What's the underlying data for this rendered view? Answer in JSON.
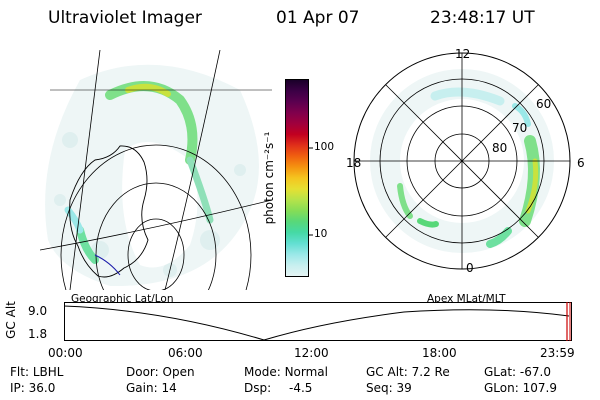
{
  "header": {
    "instrument": "Ultraviolet Imager",
    "date": "01 Apr 07",
    "time": "23:48:17 UT"
  },
  "colorbar": {
    "unit_label": "photon cm⁻²s⁻¹",
    "ticks": [
      "100",
      "10"
    ],
    "colors": [
      "#1a0029",
      "#3b0045",
      "#5b004f",
      "#80004c",
      "#a0003d",
      "#c20020",
      "#e0301a",
      "#f06010",
      "#f59310",
      "#f5c51f",
      "#e6e033",
      "#b6e34a",
      "#86dd56",
      "#58d879",
      "#45d9a5",
      "#62dfd2",
      "#9ae8e8",
      "#c7efef",
      "#e5f4f4"
    ]
  },
  "left_map": {
    "label": "Geographic Lat/Lon"
  },
  "right_map": {
    "label": "Apex MLat/MLT",
    "mlt_labels": {
      "top": "12",
      "left": "18",
      "right": "6",
      "bottom": "0"
    },
    "lat_labels": [
      "60",
      "70",
      "80"
    ]
  },
  "timeline": {
    "ylabel": "GC Alt",
    "yticks": [
      "9.0",
      "1.8"
    ],
    "xticks": [
      "00:00",
      "06:00",
      "12:00",
      "18:00",
      "23:59"
    ],
    "current_marker_color": "#cc0000"
  },
  "status": {
    "row1": [
      {
        "label": "Flt:",
        "value": "LBHL"
      },
      {
        "label": "Door:",
        "value": "Open"
      },
      {
        "label": "Mode:",
        "value": "Normal"
      },
      {
        "label": "GC Alt:",
        "value": "7.2 Re"
      },
      {
        "label": "GLat:",
        "value": "-67.0"
      }
    ],
    "row2": [
      {
        "label": "IP:",
        "value": "36.0"
      },
      {
        "label": "Gain:",
        "value": "14"
      },
      {
        "label": "Dsp:",
        "value": "-4.5"
      },
      {
        "label": "Seq:",
        "value": "39"
      },
      {
        "label": "GLon:",
        "value": "107.9"
      }
    ]
  }
}
